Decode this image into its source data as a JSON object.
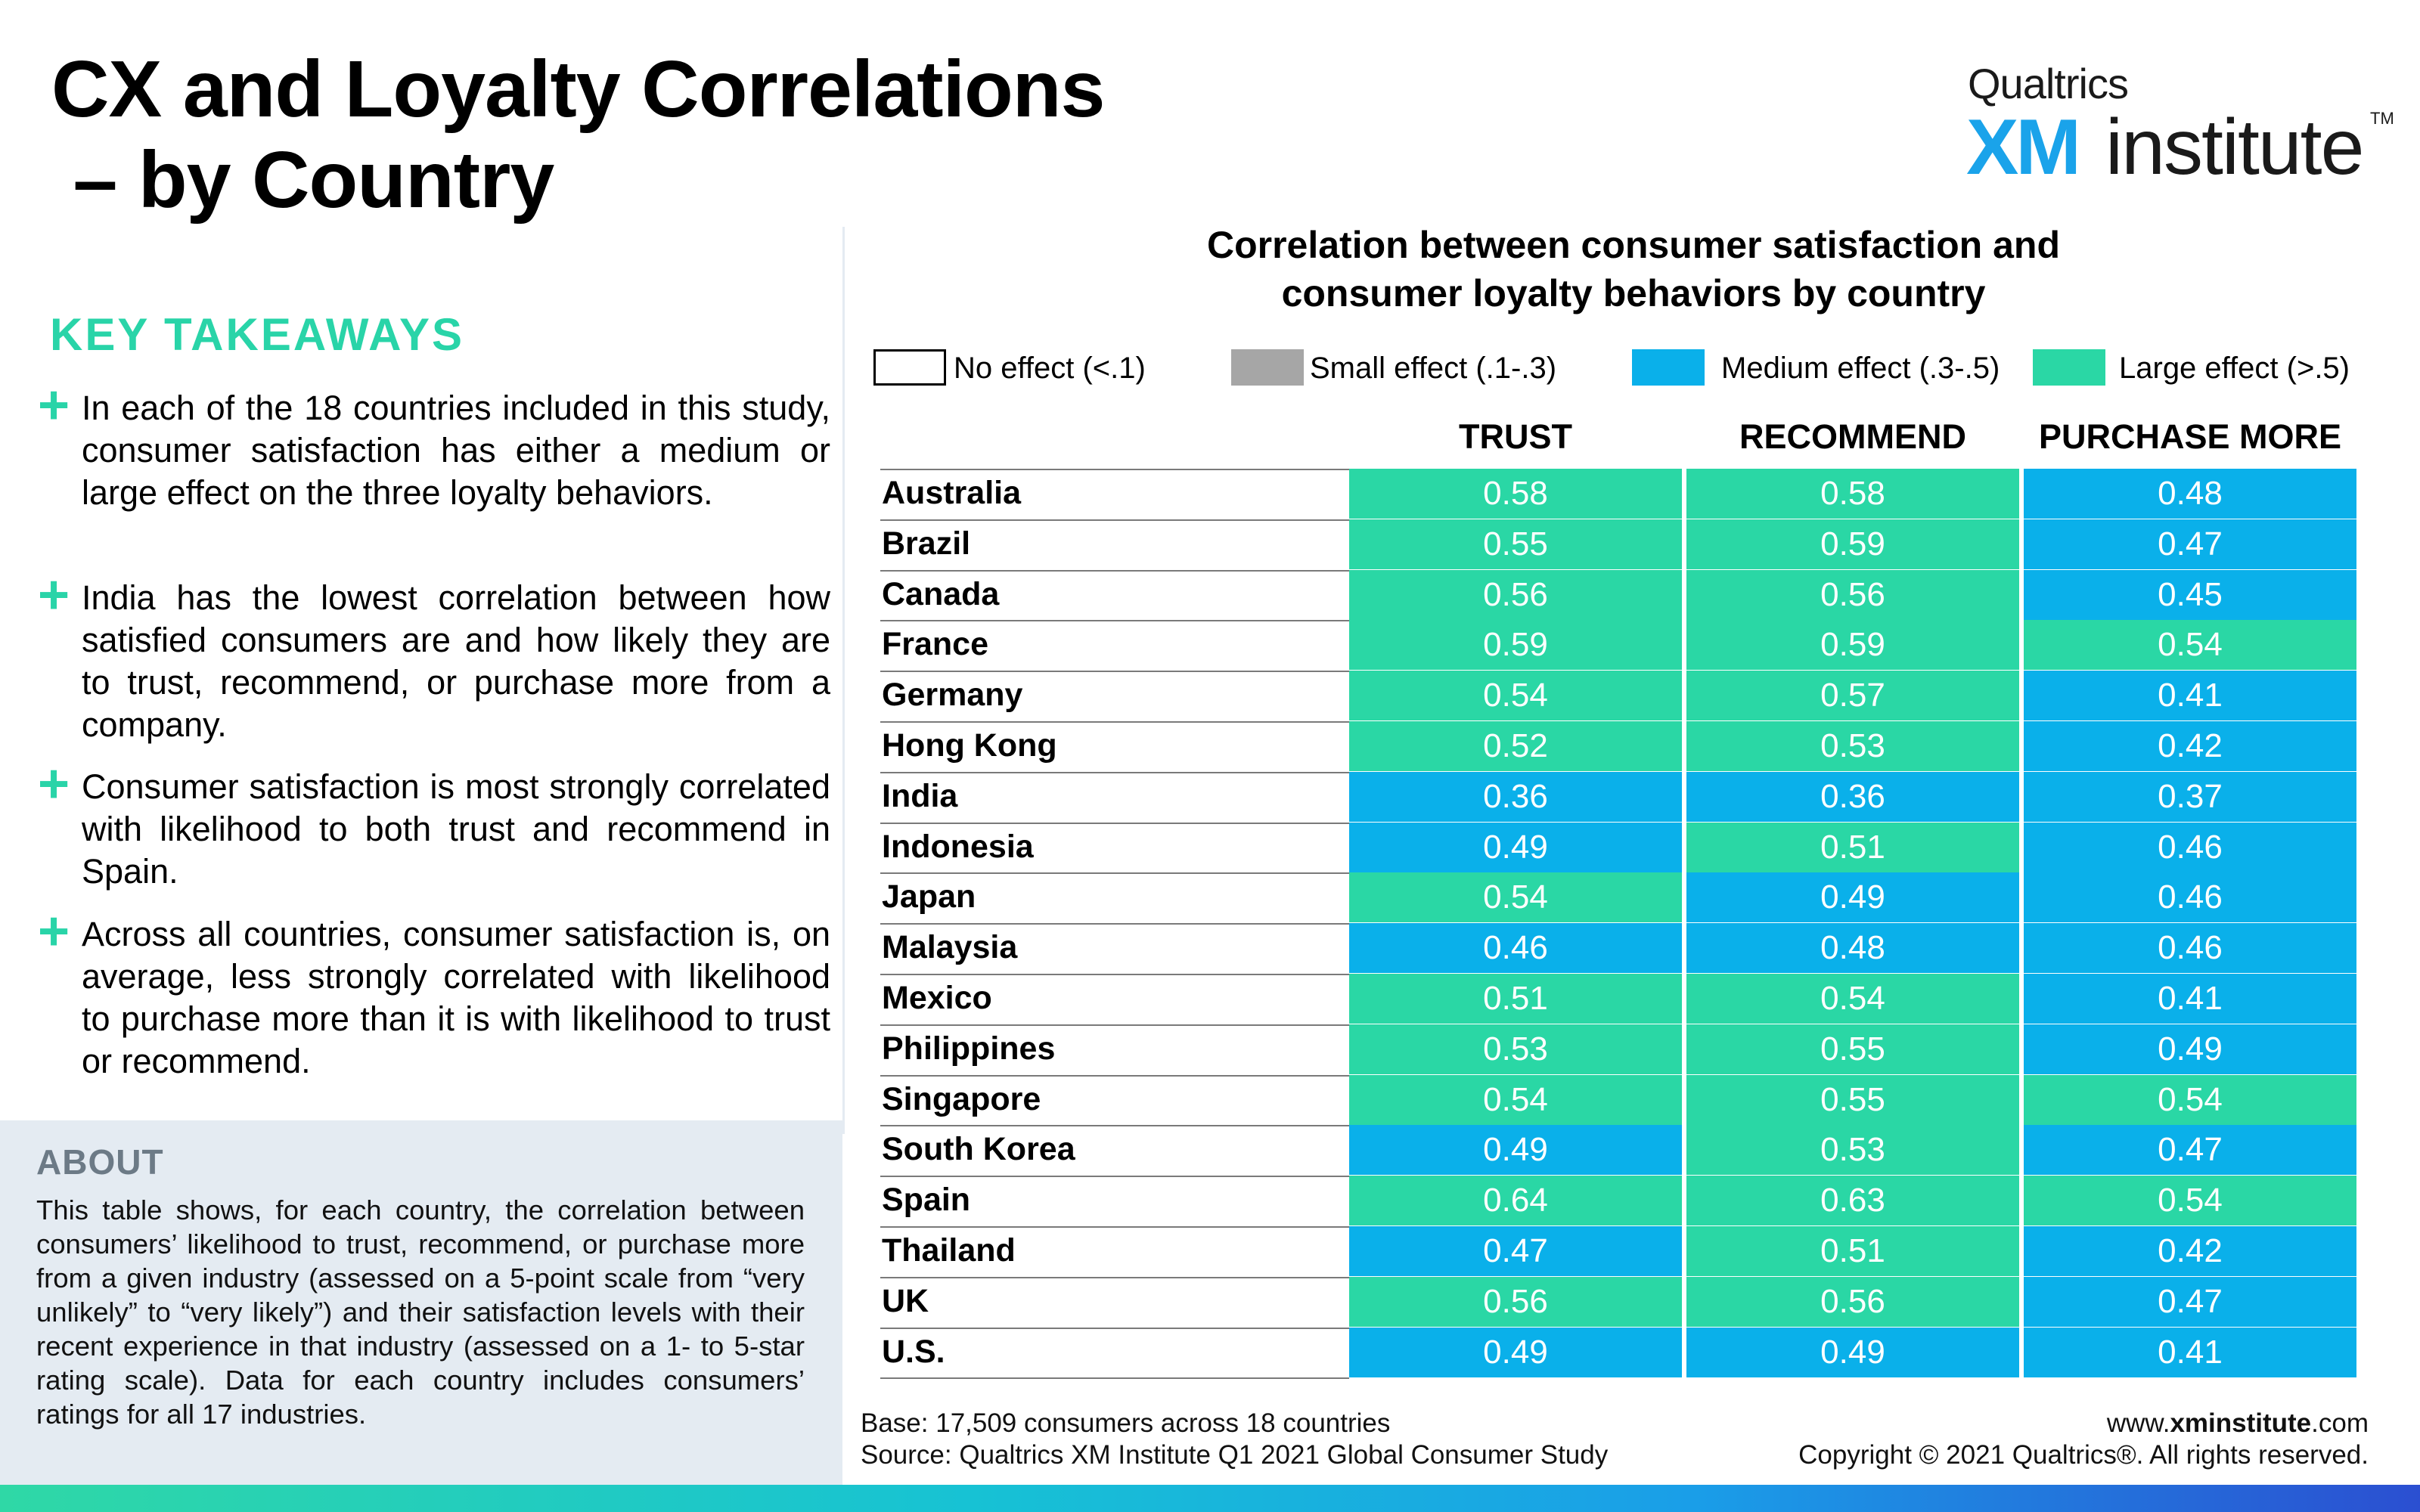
{
  "title": {
    "line1": "CX and Loyalty Correlations",
    "line2": " – by Country"
  },
  "logo": {
    "brand": "Qualtrics",
    "xm": "XM",
    "institute": "institute",
    "tm": "TM"
  },
  "key_takeaways": {
    "heading": "KEY TAKEAWAYS",
    "bullet_symbol": "+",
    "items": [
      "In each of the 18 countries included in this study, consumer satisfaction has either a medium or large effect on the three loyalty behaviors.",
      "India has the lowest correlation between how satisfied consumers are and how likely they are to trust, recommend, or purchase more from a company.",
      "Consumer satisfaction is most strongly correlated with likelihood to both trust and recommend in Spain.",
      "Across all countries, consumer satisfaction is, on average, less strongly correlated with likelihood to purchase more than it is with likelihood to trust or recommend."
    ]
  },
  "about": {
    "heading": "ABOUT",
    "text": "This table shows, for each country, the correlation between consumers’ likelihood to trust, recommend, or purchase more from a given industry (assessed on a 5-point scale from “very unlikely” to “very likely”) and their satisfaction levels with their recent experience in that industry (assessed on a 1- to 5-star rating scale). Data for each country includes consumers’ ratings for all 17 industries."
  },
  "chart_data": {
    "type": "table",
    "title_line1": "Correlation between consumer satisfaction and",
    "title_line2": "consumer loyalty behaviors by country",
    "legend": [
      {
        "label": "No effect (<.1)",
        "color": "#ffffff"
      },
      {
        "label": "Small effect (.1-.3)",
        "color": "#a6a6a6"
      },
      {
        "label": "Medium effect (.3-.5)",
        "color": "#0ab0ea"
      },
      {
        "label": "Large effect (>.5)",
        "color": "#2ad7a5"
      }
    ],
    "columns": [
      "TRUST",
      "RECOMMEND",
      "PURCHASE MORE"
    ],
    "rows": [
      {
        "country": "Australia",
        "values": [
          "0.58",
          "0.58",
          "0.48"
        ]
      },
      {
        "country": "Brazil",
        "values": [
          "0.55",
          "0.59",
          "0.47"
        ]
      },
      {
        "country": "Canada",
        "values": [
          "0.56",
          "0.56",
          "0.45"
        ]
      },
      {
        "country": "France",
        "values": [
          "0.59",
          "0.59",
          "0.54"
        ]
      },
      {
        "country": "Germany",
        "values": [
          "0.54",
          "0.57",
          "0.41"
        ]
      },
      {
        "country": "Hong Kong",
        "values": [
          "0.52",
          "0.53",
          "0.42"
        ]
      },
      {
        "country": "India",
        "values": [
          "0.36",
          "0.36",
          "0.37"
        ]
      },
      {
        "country": "Indonesia",
        "values": [
          "0.49",
          "0.51",
          "0.46"
        ]
      },
      {
        "country": "Japan",
        "values": [
          "0.54",
          "0.49",
          "0.46"
        ]
      },
      {
        "country": "Malaysia",
        "values": [
          "0.46",
          "0.48",
          "0.46"
        ]
      },
      {
        "country": "Mexico",
        "values": [
          "0.51",
          "0.54",
          "0.41"
        ]
      },
      {
        "country": "Philippines",
        "values": [
          "0.53",
          "0.55",
          "0.49"
        ]
      },
      {
        "country": "Singapore",
        "values": [
          "0.54",
          "0.55",
          "0.54"
        ]
      },
      {
        "country": "South Korea",
        "values": [
          "0.49",
          "0.53",
          "0.47"
        ]
      },
      {
        "country": "Spain",
        "values": [
          "0.64",
          "0.63",
          "0.54"
        ]
      },
      {
        "country": "Thailand",
        "values": [
          "0.47",
          "0.51",
          "0.42"
        ]
      },
      {
        "country": "UK",
        "values": [
          "0.56",
          "0.56",
          "0.47"
        ]
      },
      {
        "country": "U.S.",
        "values": [
          "0.49",
          "0.49",
          "0.41"
        ]
      }
    ]
  },
  "footer": {
    "base": "Base: 17,509 consumers across 18 countries",
    "source": "Source: Qualtrics XM Institute Q1 2021 Global Consumer Study",
    "url_prefix": "www.",
    "url_bold": "xminstitute",
    "url_suffix": ".com",
    "copyright": "Copyright © 2021 Qualtrics®. All rights reserved."
  }
}
